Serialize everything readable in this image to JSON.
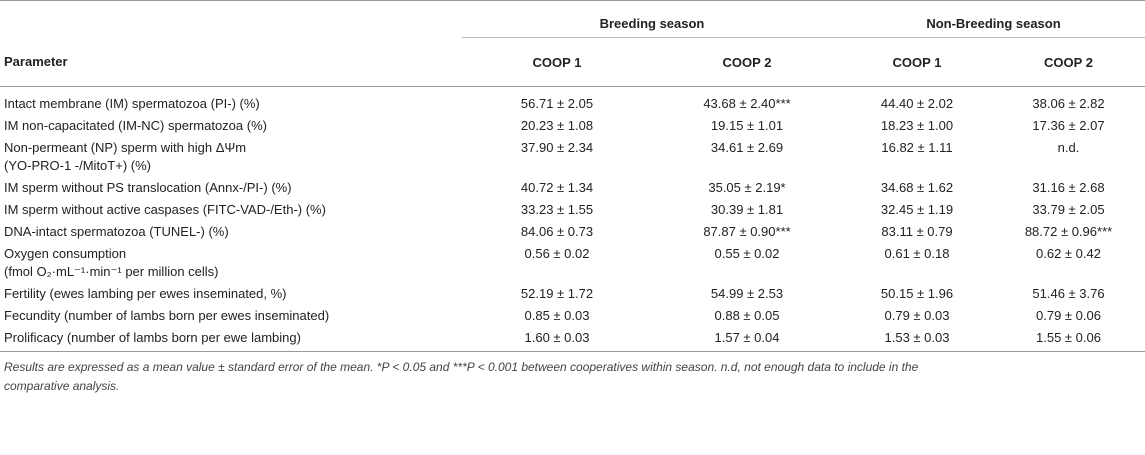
{
  "table": {
    "groups": {
      "breeding": "Breeding season",
      "non_breeding": "Non-Breeding season"
    },
    "headers": {
      "parameter": "Parameter",
      "coop1_b": "COOP 1",
      "coop2_b": "COOP 2",
      "coop1_nb": "COOP 1",
      "coop2_nb": "COOP 2"
    },
    "rows": [
      {
        "label": "Intact membrane (IM) spermatozoa (PI-) (%)",
        "b1": "56.71 ± 2.05",
        "b2": "43.68 ± 2.40***",
        "nb1": "44.40 ± 2.02",
        "nb2": "38.06 ± 2.82"
      },
      {
        "label": "IM non-capacitated (IM-NC) spermatozoa (%)",
        "b1": "20.23 ± 1.08",
        "b2": "19.15 ± 1.01",
        "nb1": "18.23 ± 1.00",
        "nb2": "17.36 ± 2.07"
      },
      {
        "label": "Non-permeant (NP) sperm with high ΔΨm",
        "label2": "(YO-PRO-1 -/MitoT+) (%)",
        "b1": "37.90 ± 2.34",
        "b2": "34.61 ± 2.69",
        "nb1": "16.82 ± 1.11",
        "nb2": "n.d."
      },
      {
        "label": "IM sperm without PS translocation (Annx-/PI-) (%)",
        "b1": "40.72 ± 1.34",
        "b2": "35.05 ± 2.19*",
        "nb1": "34.68 ± 1.62",
        "nb2": "31.16 ± 2.68"
      },
      {
        "label": "IM sperm without active caspases (FITC-VAD-/Eth-) (%)",
        "b1": "33.23 ± 1.55",
        "b2": "30.39 ± 1.81",
        "nb1": "32.45 ± 1.19",
        "nb2": "33.79 ± 2.05"
      },
      {
        "label": "DNA-intact spermatozoa (TUNEL-) (%)",
        "b1": "84.06 ± 0.73",
        "b2": "87.87 ± 0.90***",
        "nb1": "83.11 ± 0.79",
        "nb2": "88.72 ± 0.96***"
      },
      {
        "label": "Oxygen consumption",
        "label2": "(fmol O₂·mL⁻¹·min⁻¹ per million cells)",
        "b1": "0.56 ± 0.02",
        "b2": "0.55 ± 0.02",
        "nb1": "0.61 ± 0.18",
        "nb2": "0.62 ± 0.42"
      },
      {
        "label": "Fertility (ewes lambing per ewes inseminated, %)",
        "b1": "52.19 ± 1.72",
        "b2": "54.99 ± 2.53",
        "nb1": "50.15 ± 1.96",
        "nb2": "51.46 ± 3.76"
      },
      {
        "label": "Fecundity (number of lambs born per ewes inseminated)",
        "b1": "0.85 ± 0.03",
        "b2": "0.88 ± 0.05",
        "nb1": "0.79 ± 0.03",
        "nb2": "0.79 ± 0.06"
      },
      {
        "label": "Prolificacy (number of lambs born per ewe lambing)",
        "b1": "1.60 ± 0.03",
        "b2": "1.57 ± 0.04",
        "nb1": "1.53 ± 0.03",
        "nb2": "1.55 ± 0.06"
      }
    ],
    "footnote_1": "Results are expressed as a mean value ± standard error of the mean. *P < 0.05 and ***P < 0.001 between cooperatives within season. n.d, not enough data to include in the",
    "footnote_2": "comparative analysis."
  }
}
